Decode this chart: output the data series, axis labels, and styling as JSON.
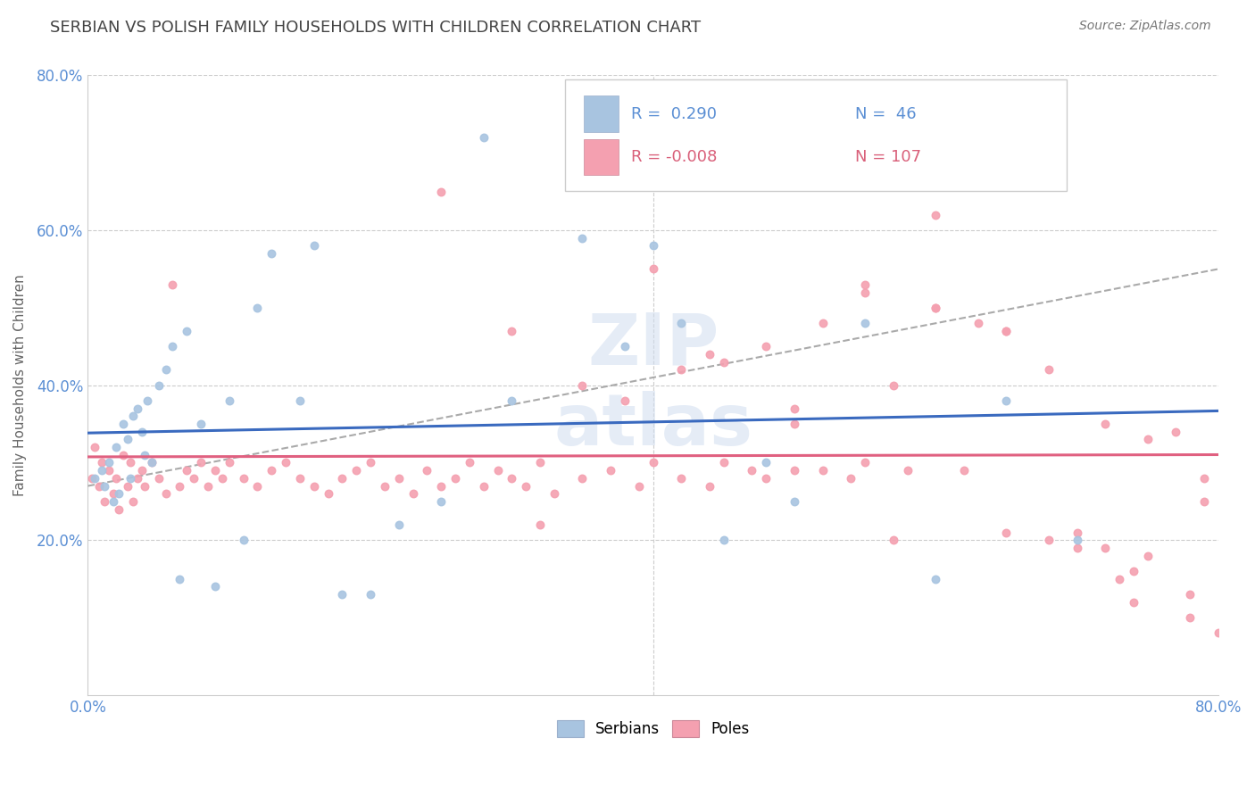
{
  "title": "SERBIAN VS POLISH FAMILY HOUSEHOLDS WITH CHILDREN CORRELATION CHART",
  "source": "Source: ZipAtlas.com",
  "ylabel": "Family Households with Children",
  "xlim": [
    0.0,
    80.0
  ],
  "ylim": [
    0.0,
    80.0
  ],
  "legend_serbian_r": "0.290",
  "legend_serbian_n": "46",
  "legend_poles_r": "-0.008",
  "legend_poles_n": "107",
  "serbian_color": "#a8c4e0",
  "poles_color": "#f4a0b0",
  "serbian_line_color": "#3a6abf",
  "poles_line_color": "#e06080",
  "ref_line_color": "#aaaaaa",
  "title_color": "#444444",
  "axis_color": "#5b8fd4",
  "watermark_color": "#d0ddf0",
  "serbian_x": [
    0.5,
    1.0,
    1.2,
    1.5,
    1.8,
    2.0,
    2.2,
    2.5,
    2.8,
    3.0,
    3.2,
    3.5,
    3.8,
    4.0,
    4.2,
    4.5,
    5.0,
    5.5,
    6.0,
    6.5,
    7.0,
    8.0,
    9.0,
    10.0,
    11.0,
    12.0,
    13.0,
    15.0,
    16.0,
    18.0,
    20.0,
    22.0,
    25.0,
    28.0,
    30.0,
    35.0,
    38.0,
    40.0,
    42.0,
    45.0,
    48.0,
    50.0,
    55.0,
    60.0,
    65.0,
    70.0
  ],
  "serbian_y": [
    28.0,
    29.0,
    27.0,
    30.0,
    25.0,
    32.0,
    26.0,
    35.0,
    33.0,
    28.0,
    36.0,
    37.0,
    34.0,
    31.0,
    38.0,
    30.0,
    40.0,
    42.0,
    45.0,
    15.0,
    47.0,
    35.0,
    14.0,
    38.0,
    20.0,
    50.0,
    57.0,
    38.0,
    58.0,
    13.0,
    13.0,
    22.0,
    25.0,
    72.0,
    38.0,
    59.0,
    45.0,
    58.0,
    48.0,
    20.0,
    30.0,
    25.0,
    48.0,
    15.0,
    38.0,
    20.0
  ],
  "poles_x": [
    0.3,
    0.5,
    0.8,
    1.0,
    1.2,
    1.5,
    1.8,
    2.0,
    2.2,
    2.5,
    2.8,
    3.0,
    3.2,
    3.5,
    3.8,
    4.0,
    4.5,
    5.0,
    5.5,
    6.0,
    6.5,
    7.0,
    7.5,
    8.0,
    8.5,
    9.0,
    9.5,
    10.0,
    11.0,
    12.0,
    13.0,
    14.0,
    15.0,
    16.0,
    17.0,
    18.0,
    19.0,
    20.0,
    21.0,
    22.0,
    23.0,
    24.0,
    25.0,
    26.0,
    27.0,
    28.0,
    29.0,
    30.0,
    31.0,
    32.0,
    33.0,
    35.0,
    37.0,
    39.0,
    40.0,
    42.0,
    44.0,
    45.0,
    47.0,
    48.0,
    50.0,
    52.0,
    54.0,
    55.0,
    57.0,
    58.0,
    60.0,
    62.0,
    65.0,
    68.0,
    70.0,
    72.0,
    73.0,
    74.0,
    75.0,
    77.0,
    78.0,
    79.0,
    25.0,
    30.0,
    35.0,
    40.0,
    45.0,
    50.0,
    55.0,
    60.0,
    65.0,
    70.0,
    75.0,
    52.0,
    48.0,
    42.0,
    55.0,
    60.0,
    65.0,
    38.0,
    32.0,
    44.0,
    50.0,
    57.0,
    63.0,
    68.0,
    72.0,
    74.0,
    78.0,
    79.0,
    80.0
  ],
  "poles_y": [
    28.0,
    32.0,
    27.0,
    30.0,
    25.0,
    29.0,
    26.0,
    28.0,
    24.0,
    31.0,
    27.0,
    30.0,
    25.0,
    28.0,
    29.0,
    27.0,
    30.0,
    28.0,
    26.0,
    53.0,
    27.0,
    29.0,
    28.0,
    30.0,
    27.0,
    29.0,
    28.0,
    30.0,
    28.0,
    27.0,
    29.0,
    30.0,
    28.0,
    27.0,
    26.0,
    28.0,
    29.0,
    30.0,
    27.0,
    28.0,
    26.0,
    29.0,
    27.0,
    28.0,
    30.0,
    27.0,
    29.0,
    28.0,
    27.0,
    30.0,
    26.0,
    28.0,
    29.0,
    27.0,
    30.0,
    28.0,
    27.0,
    30.0,
    29.0,
    28.0,
    35.0,
    29.0,
    28.0,
    30.0,
    40.0,
    29.0,
    50.0,
    29.0,
    21.0,
    20.0,
    19.0,
    35.0,
    15.0,
    12.0,
    33.0,
    34.0,
    10.0,
    28.0,
    65.0,
    47.0,
    40.0,
    55.0,
    43.0,
    37.0,
    52.0,
    50.0,
    47.0,
    21.0,
    18.0,
    48.0,
    45.0,
    42.0,
    53.0,
    62.0,
    47.0,
    38.0,
    22.0,
    44.0,
    29.0,
    20.0,
    48.0,
    42.0,
    19.0,
    16.0,
    13.0,
    25.0,
    8.0
  ]
}
